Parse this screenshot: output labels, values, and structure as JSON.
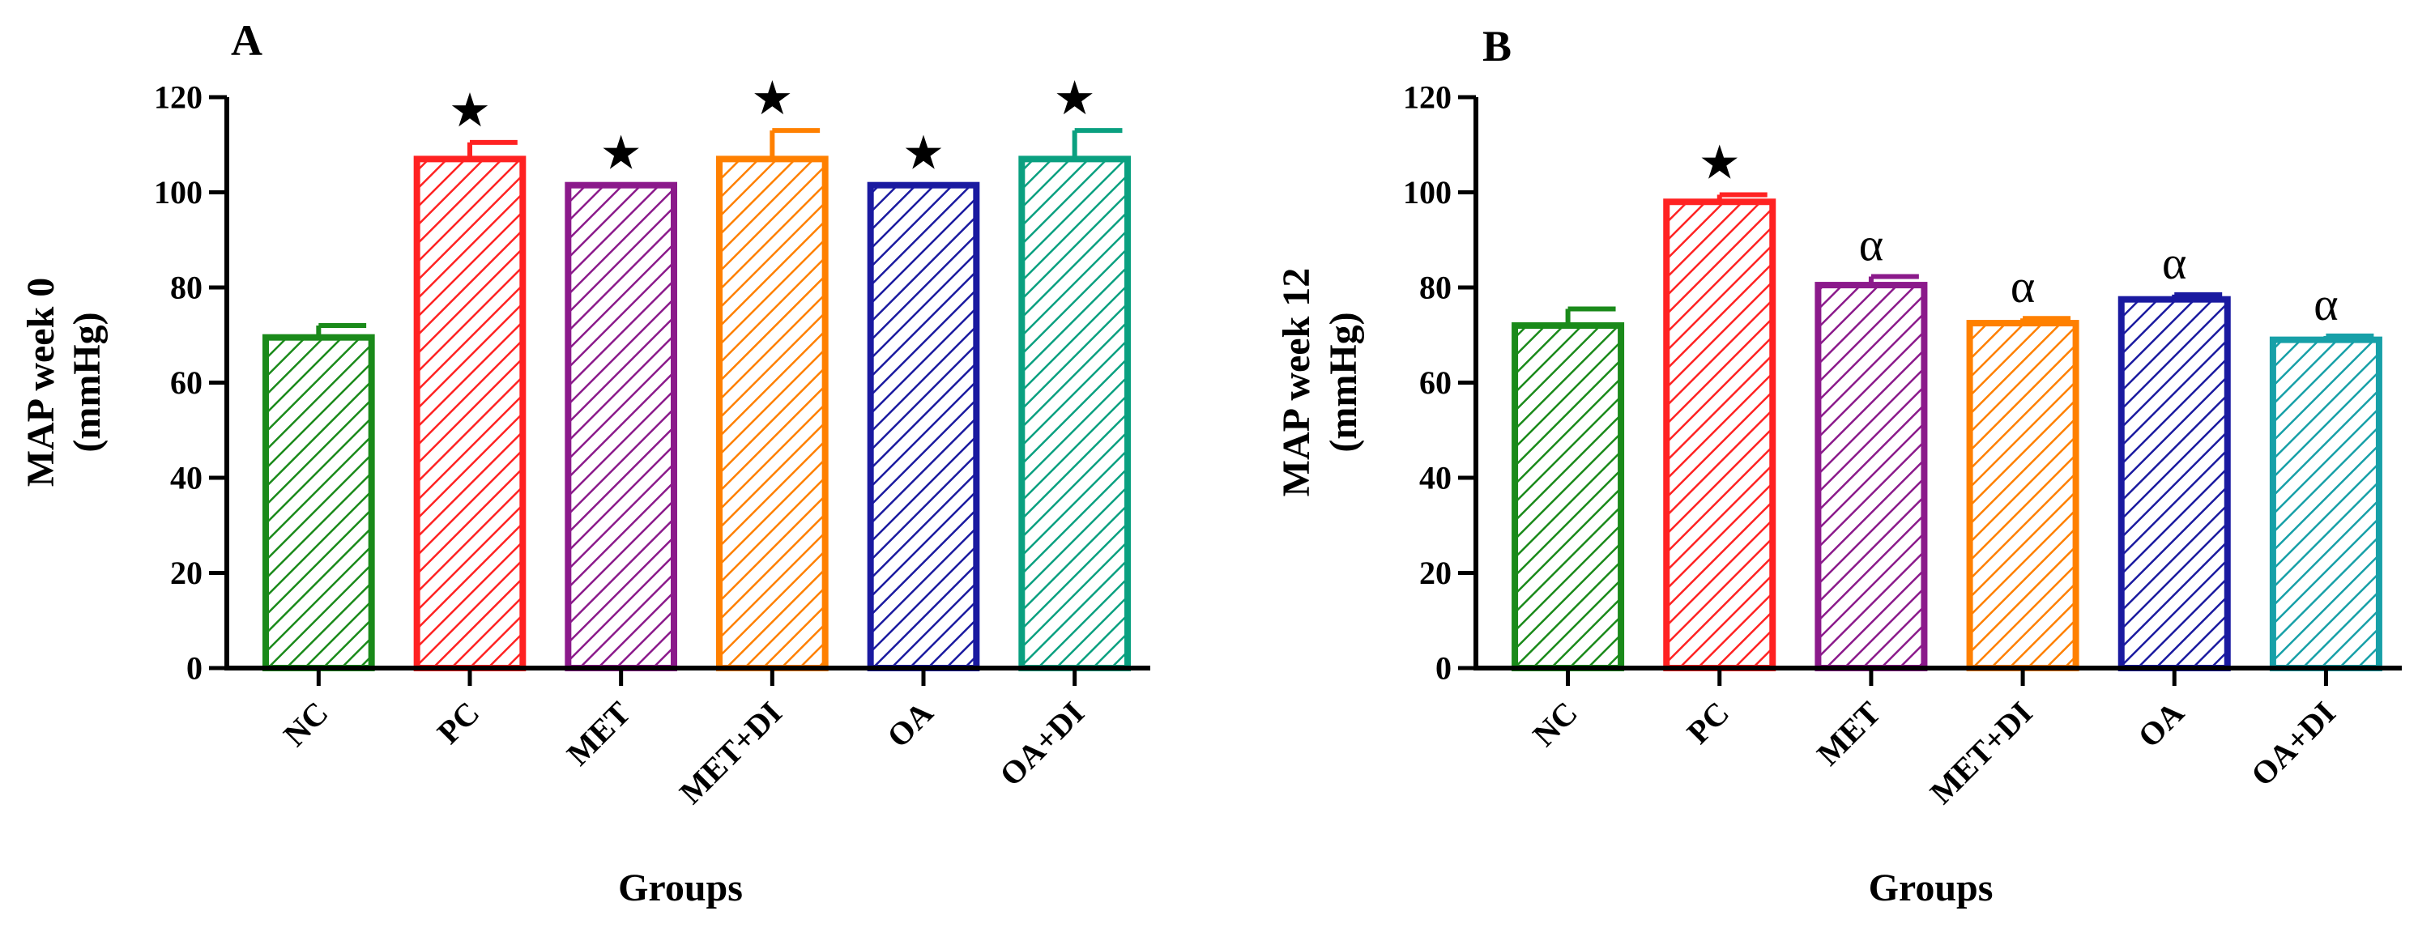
{
  "chart_data": [
    {
      "type": "bar",
      "panel": "A",
      "title": "",
      "xlabel": "Groups",
      "ylabel_line1": "MAP week 0",
      "ylabel_line2": "(mmHg)",
      "ylim": [
        0,
        120
      ],
      "yticks": [
        "0",
        "20",
        "40",
        "60",
        "80",
        "100",
        "120"
      ],
      "categories": [
        "NC",
        "PC",
        "MET",
        "MET+DI",
        "OA",
        "OA+DI"
      ],
      "values": [
        69.5,
        107,
        101.5,
        107,
        101.5,
        107
      ],
      "errors": [
        2.5,
        3.5,
        0,
        6,
        0,
        6
      ],
      "annotations": [
        "",
        "★",
        "★",
        "★",
        "★",
        "★"
      ],
      "colors": [
        "#1a8a1a",
        "#ff2222",
        "#8b1a8b",
        "#ff8000",
        "#1a1aa0",
        "#0aa080"
      ]
    },
    {
      "type": "bar",
      "panel": "B",
      "title": "",
      "xlabel": "Groups",
      "ylabel_line1": "MAP week 12",
      "ylabel_line2": "(mmHg)",
      "ylim": [
        0,
        120
      ],
      "yticks": [
        "0",
        "20",
        "40",
        "60",
        "80",
        "100",
        "120"
      ],
      "categories": [
        "NC",
        "PC",
        "MET",
        "MET+DI",
        "OA",
        "OA+DI"
      ],
      "values": [
        72,
        98,
        80.5,
        72.5,
        77.5,
        69
      ],
      "errors": [
        3.5,
        1.5,
        1.8,
        1,
        1,
        0.8
      ],
      "annotations": [
        "",
        "★",
        "α",
        "α",
        "α",
        "α"
      ],
      "colors": [
        "#1a8a1a",
        "#ff2222",
        "#8b1a8b",
        "#ff8000",
        "#1a1aa0",
        "#17a0a8"
      ]
    }
  ]
}
